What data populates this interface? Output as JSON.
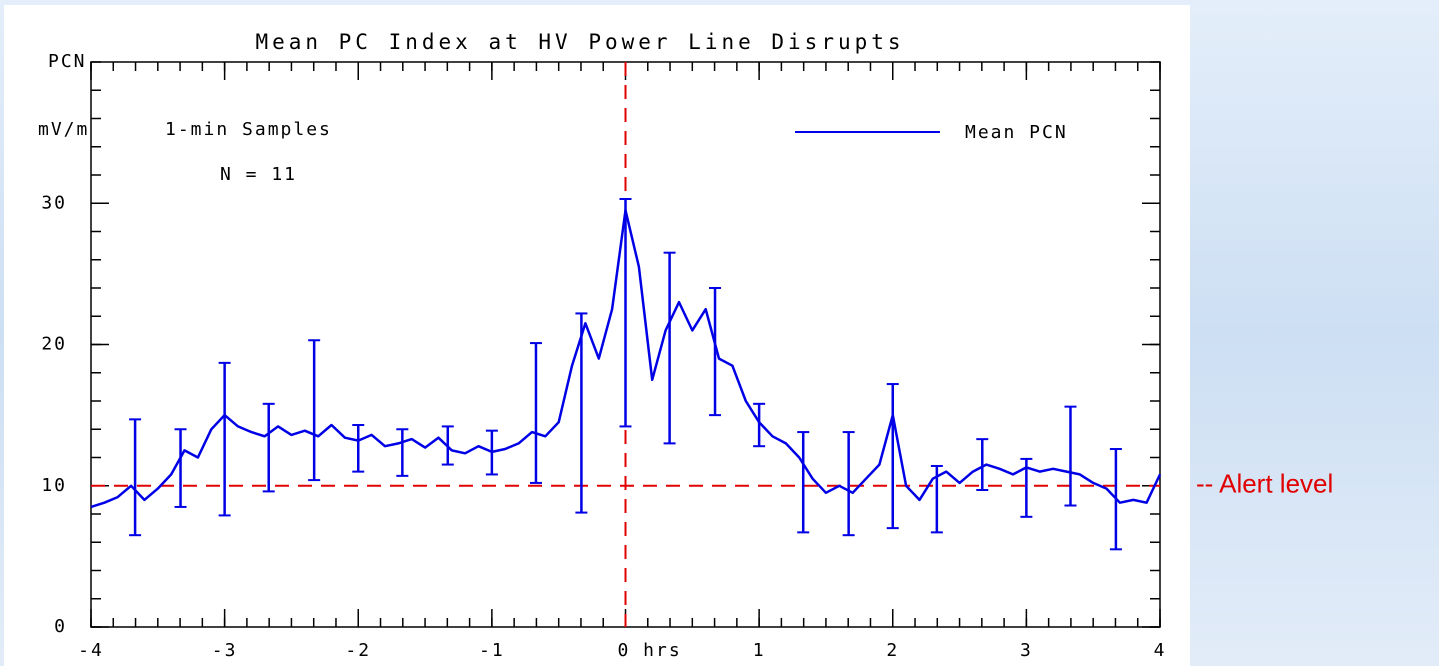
{
  "chart_data": {
    "type": "line",
    "title": "Mean PC Index at HV Power Line Disrupts",
    "ylabel": [
      "PCN",
      "mV/m"
    ],
    "annotations": [
      "1-min Samples",
      "N = 11"
    ],
    "x": [
      -4,
      -3.9,
      -3.8,
      -3.7,
      -3.6,
      -3.5,
      -3.4,
      -3.3,
      -3.2,
      -3.1,
      -3,
      -2.9,
      -2.8,
      -2.7,
      -2.6,
      -2.5,
      -2.4,
      -2.3,
      -2.2,
      -2.1,
      -2,
      -1.9,
      -1.8,
      -1.7,
      -1.6,
      -1.5,
      -1.4,
      -1.3,
      -1.2,
      -1.1,
      -1,
      -0.9,
      -0.8,
      -0.7,
      -0.6,
      -0.5,
      -0.4,
      -0.3,
      -0.2,
      -0.1,
      0,
      0.1,
      0.2,
      0.3,
      0.4,
      0.5,
      0.6,
      0.7,
      0.8,
      0.9,
      1,
      1.1,
      1.2,
      1.3,
      1.4,
      1.5,
      1.6,
      1.7,
      1.8,
      1.9,
      2,
      2.1,
      2.2,
      2.3,
      2.4,
      2.5,
      2.6,
      2.7,
      2.8,
      2.9,
      3,
      3.1,
      3.2,
      3.3,
      3.4,
      3.5,
      3.6,
      3.7,
      3.8,
      3.9,
      4
    ],
    "series": [
      {
        "name": "Mean PCN",
        "color": "#0000e6",
        "values": [
          8.5,
          8.8,
          9.2,
          10.0,
          9.0,
          9.8,
          10.8,
          12.5,
          12.0,
          14.0,
          15.0,
          14.2,
          13.8,
          13.5,
          14.2,
          13.6,
          13.9,
          13.5,
          14.3,
          13.4,
          13.2,
          13.6,
          12.8,
          13.0,
          13.3,
          12.7,
          13.4,
          12.5,
          12.3,
          12.8,
          12.4,
          12.6,
          13.0,
          13.8,
          13.5,
          14.5,
          18.5,
          21.5,
          19.0,
          22.5,
          29.5,
          25.5,
          17.5,
          21.0,
          23.0,
          21.0,
          22.5,
          19.0,
          18.5,
          16.0,
          14.5,
          13.5,
          13.0,
          12.0,
          10.5,
          9.5,
          10.0,
          9.5,
          10.5,
          11.5,
          15.0,
          10.0,
          9.0,
          10.5,
          11.0,
          10.2,
          11.0,
          11.5,
          11.2,
          10.8,
          11.3,
          11.0,
          11.2,
          11.0,
          10.8,
          10.2,
          9.8,
          8.8,
          9.0,
          8.8,
          10.8
        ]
      }
    ],
    "error_bars": {
      "x": [
        -3.67,
        -3.33,
        -3,
        -2.67,
        -2.33,
        -2,
        -1.67,
        -1.33,
        -1,
        -0.67,
        -0.33,
        0,
        0.33,
        0.67,
        1,
        1.33,
        1.67,
        2,
        2.33,
        2.67,
        3,
        3.33,
        3.67
      ],
      "values": [
        10.6,
        11.25,
        13.3,
        12.7,
        15.35,
        12.65,
        12.35,
        12.85,
        12.35,
        15.15,
        15.15,
        22.25,
        19.75,
        19.5,
        14.3,
        10.25,
        10.15,
        12.1,
        9.05,
        11.5,
        9.85,
        12.1,
        9.05
      ],
      "errors": [
        4.1,
        2.75,
        5.4,
        3.1,
        4.95,
        1.65,
        1.65,
        1.35,
        1.55,
        4.95,
        7.05,
        8.05,
        6.75,
        4.5,
        1.5,
        3.55,
        3.65,
        5.1,
        2.35,
        1.8,
        2.05,
        3.5,
        3.55
      ]
    },
    "reference_lines": [
      {
        "axis": "y",
        "value": 10,
        "label": "-- Alert level",
        "color": "#e00000"
      },
      {
        "axis": "x",
        "value": 0,
        "color": "#e00000"
      }
    ],
    "xlim": [
      -4,
      4
    ],
    "xticks": [
      -4,
      -3,
      -2,
      -1,
      {
        "value": 0,
        "label": "0 hrs"
      },
      1,
      2,
      3,
      4
    ],
    "ylim": [
      0,
      40
    ],
    "yticks": [
      0,
      10,
      20,
      30
    ],
    "legend": "top-right"
  }
}
